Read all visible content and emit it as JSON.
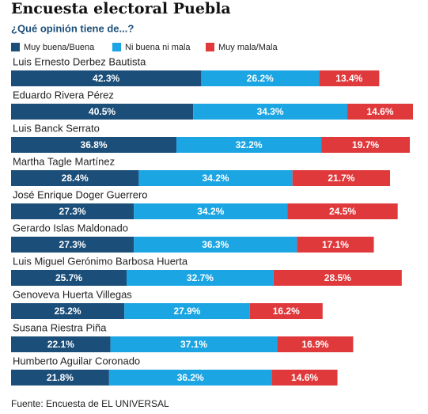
{
  "chart_data": {
    "type": "stacked-bar-horizontal",
    "title": "Encuesta electoral Puebla",
    "subtitle": "¿Qué opinión tiene de...?",
    "source": "Fuente: Encuesta de EL UNIVERSAL",
    "categories": [
      "Luis Ernesto Derbez Bautista",
      "Eduardo Rivera Pérez",
      "Luis Banck Serrato",
      "Martha Tagle Martínez",
      "José Enrique Doger Guerrero",
      "Gerardo Islas Maldonado",
      "Luis Miguel Gerónimo Barbosa Huerta",
      "Genoveva Huerta Villegas",
      "Susana Riestra Piña",
      "Humberto Aguilar Coronado"
    ],
    "series": [
      {
        "name": "Muy buena/Buena",
        "color": "#1b4e79",
        "values": [
          42.3,
          40.5,
          36.8,
          28.4,
          27.3,
          27.3,
          25.7,
          25.2,
          22.1,
          21.8
        ],
        "value_labels": [
          "42.3%",
          "40.5%",
          "36.8%",
          "28.4%",
          "27.3%",
          "27.3%",
          "25.7%",
          "25.2%",
          "22.1%",
          "21.8%"
        ]
      },
      {
        "name": "Ni buena ni mala",
        "color": "#1ba5e2",
        "values": [
          26.2,
          34.3,
          32.2,
          34.2,
          34.2,
          36.3,
          32.7,
          27.9,
          37.1,
          36.2
        ],
        "value_labels": [
          "26.2%",
          "34.3%",
          "32.2%",
          "34.2%",
          "34.2%",
          "36.3%",
          "32.7%",
          "27.9%",
          "37.1%",
          "36.2%"
        ]
      },
      {
        "name": "Muy mala/Mala",
        "color": "#e0393c",
        "values": [
          13.4,
          14.6,
          19.7,
          21.7,
          24.5,
          17.1,
          28.5,
          16.2,
          16.9,
          14.6
        ],
        "value_labels": [
          "13.4%",
          "14.6%",
          "19.7%",
          "21.7%",
          "24.5%",
          "17.1%",
          "28.5%",
          "16.2%",
          "16.9%",
          "14.6%"
        ]
      }
    ]
  }
}
